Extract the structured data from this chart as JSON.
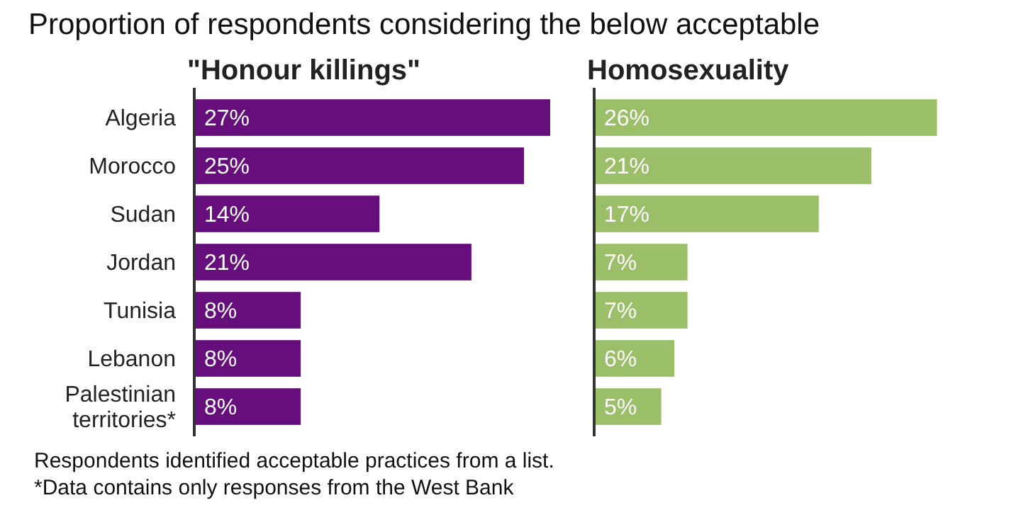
{
  "chart_data": [
    {
      "type": "bar",
      "orientation": "horizontal",
      "title": "Proportion of respondents considering the below acceptable",
      "subtitle": "\"Honour killings\"",
      "categories": [
        "Algeria",
        "Morocco",
        "Sudan",
        "Jordan",
        "Tunisia",
        "Lebanon",
        "Palestinian territories*"
      ],
      "values": [
        27,
        25,
        14,
        21,
        8,
        8,
        8
      ],
      "color": "#660e7b",
      "value_labels": [
        "27%",
        "25%",
        "14%",
        "21%",
        "8%",
        "8%",
        "8%"
      ],
      "tick_labels": "y",
      "annotations": [
        "Respondents identified acceptable practices from a list.",
        "*Data contains only responses from the West Bank"
      ]
    },
    {
      "type": "bar",
      "orientation": "horizontal",
      "subtitle": "Homosexuality",
      "categories": [
        null,
        null,
        null,
        null,
        null,
        null,
        null
      ],
      "values": [
        26,
        21,
        17,
        7,
        7,
        6,
        5
      ],
      "color": "#9bbf69",
      "value_labels": [
        "26%",
        "21%",
        "17%",
        "7%",
        "7%",
        "6%",
        "5%"
      ],
      "tick_labels": false
    }
  ]
}
